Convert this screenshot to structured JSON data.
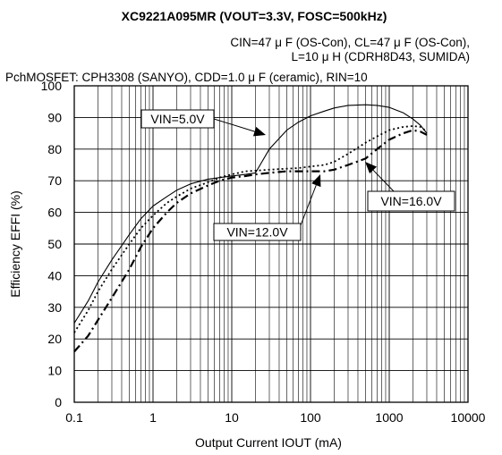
{
  "chart_data": {
    "type": "line",
    "title": "XC9221A095MR (VOUT=3.3V, FOSC=500kHz)",
    "conditions": [
      "CIN=47 μ F (OS-Con), CL=47 μ F (OS-Con),",
      "L=10 μ H (CDRH8D43, SUMIDA)",
      "PchMOSFET:  CPH3308  (SANYO),  CDD=1.0 μ F  (ceramic),  RIN=10"
    ],
    "xlabel": "Output Current   IOUT (mA)",
    "ylabel": "Efficiency   EFFI (%)",
    "xscale": "log",
    "xlim": [
      0.1,
      10000
    ],
    "ylim": [
      0,
      100
    ],
    "grid": true,
    "x_tick_labels": [
      "0.1",
      "1",
      "10",
      "100",
      "1000",
      "10000"
    ],
    "y_tick_labels": [
      "0",
      "10",
      "20",
      "30",
      "40",
      "50",
      "60",
      "70",
      "80",
      "90",
      "100"
    ],
    "series": [
      {
        "name": "VIN=5.0V",
        "style": "solid",
        "x": [
          0.1,
          0.15,
          0.2,
          0.3,
          0.5,
          0.7,
          1,
          1.5,
          2,
          3,
          5,
          7,
          10,
          15,
          20,
          30,
          50,
          70,
          100,
          150,
          200,
          300,
          500,
          700,
          1000,
          1500,
          2000,
          2500,
          3000
        ],
        "y": [
          25,
          32,
          38,
          45,
          53,
          58,
          62,
          65,
          67,
          69,
          70.5,
          71,
          71.5,
          72,
          72.5,
          80,
          86,
          88.5,
          90.5,
          92,
          93,
          93.8,
          94,
          93.8,
          93.2,
          91.5,
          89.5,
          87.5,
          85
        ]
      },
      {
        "name": "VIN=12.0V",
        "style": "dotted",
        "x": [
          0.1,
          0.15,
          0.2,
          0.3,
          0.5,
          0.7,
          1,
          1.5,
          2,
          3,
          5,
          7,
          10,
          15,
          20,
          30,
          50,
          70,
          100,
          150,
          200,
          300,
          500,
          700,
          1000,
          1500,
          2000,
          2500,
          3000
        ],
        "y": [
          22,
          29,
          35,
          42,
          50,
          55,
          59,
          63,
          65,
          67.5,
          69.5,
          71,
          72,
          73,
          73.2,
          73.5,
          73.8,
          74,
          74.5,
          75,
          76,
          78.5,
          82,
          84,
          86,
          87,
          87.3,
          87,
          85.5
        ]
      },
      {
        "name": "VIN=16.0V",
        "style": "dashdot",
        "x": [
          0.1,
          0.15,
          0.2,
          0.3,
          0.5,
          0.7,
          1,
          1.5,
          2,
          3,
          5,
          7,
          10,
          15,
          20,
          30,
          50,
          70,
          100,
          150,
          200,
          300,
          500,
          700,
          1000,
          1500,
          2000,
          2500,
          3000
        ],
        "y": [
          16,
          21,
          26,
          33,
          42,
          49,
          55,
          60,
          63,
          66,
          68.5,
          70,
          71,
          71.5,
          72,
          72.5,
          73,
          73,
          73,
          73,
          73.5,
          75,
          77,
          80,
          83,
          85,
          86,
          85.5,
          84.5
        ]
      }
    ],
    "annotations": [
      {
        "text": "VIN=5.0V"
      },
      {
        "text": "VIN=12.0V"
      },
      {
        "text": "VIN=16.0V"
      }
    ]
  }
}
